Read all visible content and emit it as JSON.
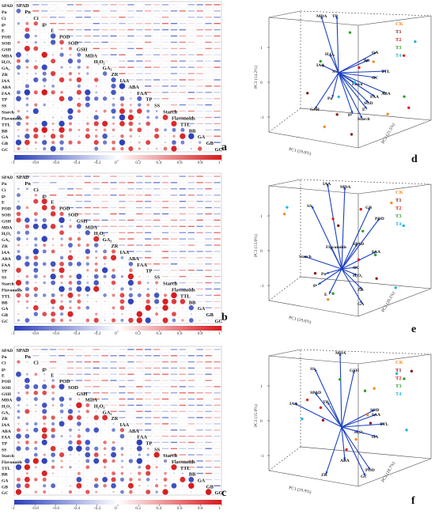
{
  "variables": [
    "SPAD",
    "Pn",
    "Ci",
    "gs",
    "E",
    "POD",
    "SOD",
    "GSH",
    "MDA",
    "H₂O₂",
    "GA₃",
    "ZR",
    "IAA",
    "ABA",
    "FAA",
    "TP",
    "SS",
    "Starch",
    "Flavonoids",
    "TTL",
    "BB",
    "GA",
    "GB",
    "GC"
  ],
  "colorbar_ticks": [
    "-1",
    "-0.8",
    "-0.6",
    "-0.4",
    "-0.2",
    "0",
    "0.2",
    "0.4",
    "0.6",
    "0.8",
    "1"
  ],
  "panel_labels": [
    "a",
    "b",
    "c",
    "d",
    "e",
    "f"
  ],
  "colors": {
    "negative": "#2b3fb8",
    "positive": "#d7191c",
    "arrow": "#1a3fbf",
    "CK": "#f28c28",
    "T1": "#8b1a1a",
    "T2": "#e01e1e",
    "T3": "#2ca02c",
    "T4": "#1fb6e0"
  },
  "chart_data": [
    {
      "type": "heatmap",
      "panel": "a",
      "variables": [
        "SPAD",
        "Pn",
        "Ci",
        "gs",
        "E",
        "POD",
        "SOD",
        "GSH",
        "MDA",
        "H₂O₂",
        "GA₃",
        "ZR",
        "IAA",
        "ABA",
        "FAA",
        "TP",
        "SS",
        "Starch",
        "Flavonoids",
        "TTL",
        "BB",
        "GA",
        "GB",
        "GC"
      ],
      "value_range": [
        -1,
        1
      ],
      "colorbar": "bottom",
      "lower_triangle": "circles",
      "upper_triangle": "coefficients"
    },
    {
      "type": "heatmap",
      "panel": "b",
      "variables": [
        "SPAD",
        "Pn",
        "Ci",
        "gs",
        "E",
        "POD",
        "SOD",
        "GSH",
        "MDA",
        "H₂O₂",
        "GA₃",
        "ZR",
        "IAA",
        "ABA",
        "FAA",
        "TP",
        "SS",
        "Starch",
        "Flavonoids",
        "TTL",
        "BB",
        "GA",
        "GB",
        "GC"
      ],
      "value_range": [
        -1,
        1
      ],
      "colorbar": "bottom",
      "lower_triangle": "circles",
      "upper_triangle": "coefficients"
    },
    {
      "type": "heatmap",
      "panel": "c",
      "variables": [
        "SPAD",
        "Pn",
        "Ci",
        "gs",
        "E",
        "POD",
        "SOD",
        "GSH",
        "MDA",
        "H₂O₂",
        "GA₃",
        "ZR",
        "IAA",
        "ABA",
        "FAA",
        "TP",
        "SS",
        "Starch",
        "Flavonoids",
        "TTL",
        "BB",
        "GA",
        "GB",
        "GC"
      ],
      "value_range": [
        -1,
        1
      ],
      "colorbar": "bottom",
      "lower_triangle": "circles",
      "upper_triangle": "coefficients"
    },
    {
      "type": "scatter",
      "panel": "d",
      "subtype": "3d-biplot",
      "axis_labels": [
        "PC1 (29.8%)",
        "PC2 (21.5%)",
        "PC3 (14.2%)"
      ],
      "legend": [
        "CK",
        "T1",
        "T2",
        "T3",
        "T4"
      ],
      "legend_position": "top-right",
      "loading_labels": [
        "MDA",
        "TP",
        "GA",
        "BB",
        "TTL",
        "H₂O₂",
        "GC",
        "Flavo",
        "SS",
        "IAA",
        "ABA",
        "FAA",
        "SOD",
        "E",
        "gs",
        "Starch",
        "GSH",
        "Pn"
      ]
    },
    {
      "type": "scatter",
      "panel": "e",
      "subtype": "3d-biplot",
      "axis_labels": [
        "PC1 (29.6%)",
        "PC2 (20.1%)",
        "PC3 (13.6%)"
      ],
      "legend": [
        "CK",
        "T1",
        "T2",
        "T3",
        "T4"
      ],
      "legend_position": "top-right",
      "loading_labels": [
        "IAA",
        "MDA",
        "SS",
        "GB",
        "POD",
        "SPAD",
        "FAA",
        "Flavonoids",
        "Starch",
        "GC",
        "H₂O₂",
        "ZR",
        "Pn",
        "gs",
        "E",
        "GA"
      ]
    },
    {
      "type": "scatter",
      "panel": "f",
      "subtype": "3d-biplot",
      "axis_labels": [
        "PC1 (29.9%)",
        "PC2 (18.7%)",
        "PC3 (15.0%)"
      ],
      "legend": [
        "CK",
        "T1",
        "T2",
        "T3",
        "T4"
      ],
      "legend_position": "top-right",
      "loading_labels": [
        "MDA",
        "SS",
        "GSH",
        "SPAD",
        "TP",
        "IAA",
        "SOD",
        "FAA",
        "TTL",
        "H₂O₂",
        "GA",
        "ABA",
        "ZR",
        "POD",
        "GC"
      ]
    }
  ]
}
